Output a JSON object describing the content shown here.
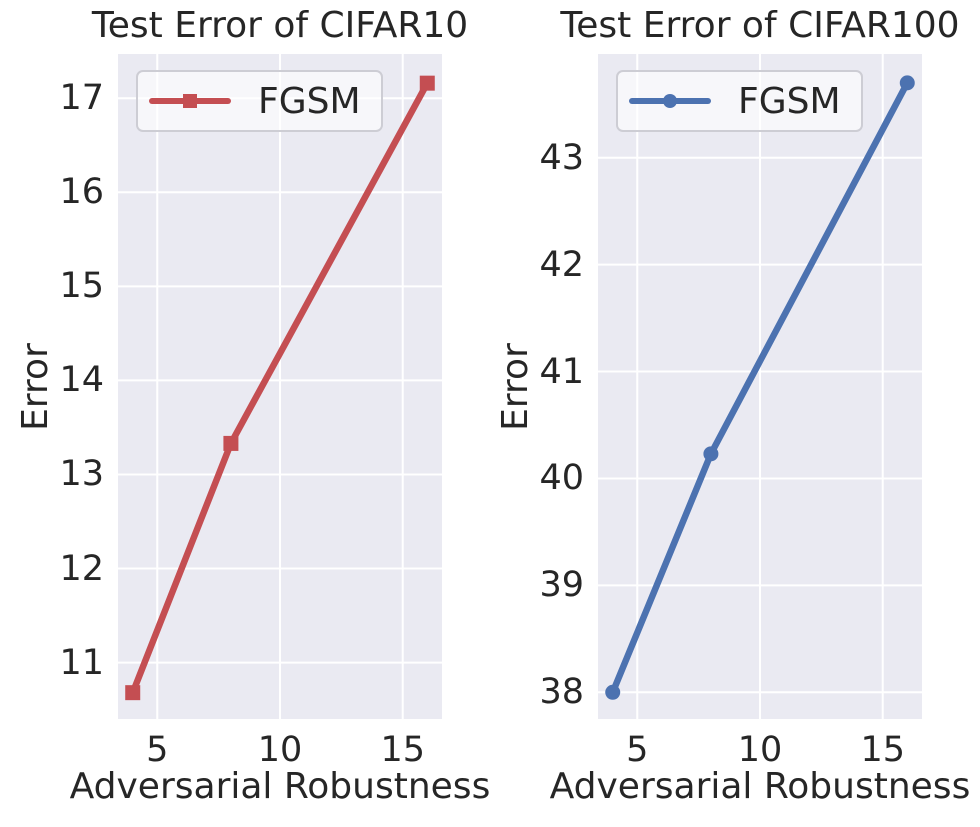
{
  "style": {
    "figure_background": "#ffffff",
    "axes_background": "#eaeaf2",
    "grid_color": "#ffffff",
    "text_color": "#262626",
    "legend_background": "rgba(255,255,255,0.6)",
    "legend_border": "#cdcdd4"
  },
  "chart_data": [
    {
      "type": "line",
      "title": "Test Error of CIFAR10",
      "xlabel": "Adversarial Robustness",
      "ylabel": "Error",
      "x": [
        4,
        8,
        16
      ],
      "series": [
        {
          "name": "FGSM",
          "values": [
            10.68,
            13.33,
            17.16
          ],
          "color": "#c44e52",
          "marker": "square"
        }
      ],
      "xlim": [
        3.4,
        16.6
      ],
      "ylim": [
        10.4,
        17.47
      ],
      "xticks": [
        5,
        10,
        15
      ],
      "yticks": [
        11,
        12,
        13,
        14,
        15,
        16,
        17
      ],
      "grid": true,
      "legend_position": "upper left"
    },
    {
      "type": "line",
      "title": "Test Error of CIFAR100",
      "xlabel": "Adversarial Robustness",
      "ylabel": "Error",
      "x": [
        4,
        8,
        16
      ],
      "series": [
        {
          "name": "FGSM",
          "values": [
            38.0,
            40.23,
            43.7
          ],
          "color": "#4c72b0",
          "marker": "circle"
        }
      ],
      "xlim": [
        3.4,
        16.6
      ],
      "ylim": [
        37.75,
        43.97
      ],
      "xticks": [
        5,
        10,
        15
      ],
      "yticks": [
        38,
        39,
        40,
        41,
        42,
        43
      ],
      "grid": true,
      "legend_position": "upper left"
    }
  ]
}
